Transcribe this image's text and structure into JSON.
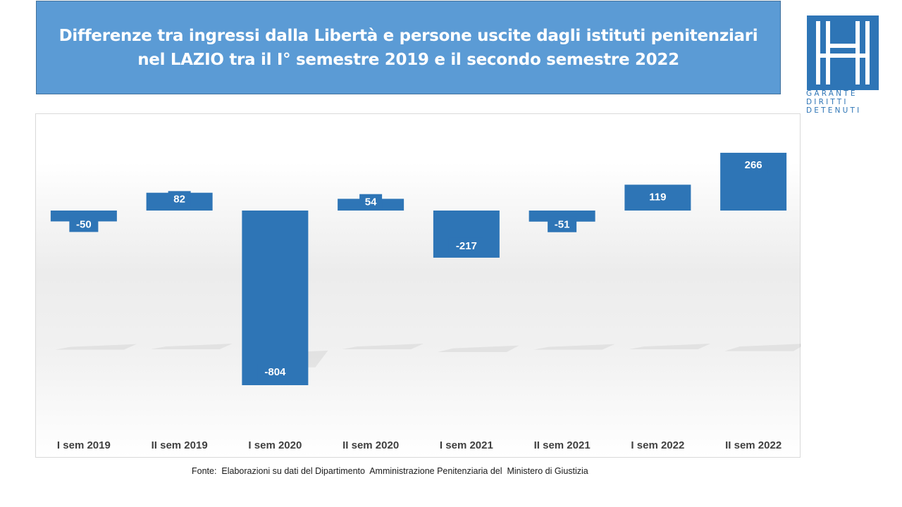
{
  "title": {
    "line1": "Differenze tra ingressi dalla Libertà e persone uscite dagli istituti penitenziari",
    "line2": "nel LAZIO tra il I° semestre 2019 e il secondo semestre 2022"
  },
  "logo": {
    "text_lines": [
      "GARANTE",
      "DIRITTI",
      "DETENUTI"
    ],
    "color": "#2e75b6"
  },
  "source": "Fonte:  Elaborazioni su dati del Dipartimento  Amministrazione Penitenziaria del  Ministero di Giustizia",
  "colors": {
    "bar": "#2e75b6",
    "title_bg": "#5b9bd5"
  },
  "chart_data": {
    "type": "bar",
    "title": "Differenze tra ingressi dalla Libertà e persone uscite dagli istituti penitenziari nel LAZIO tra il I° semestre 2019 e il secondo semestre 2022",
    "categories": [
      "I sem 2019",
      "II sem 2019",
      "I sem 2020",
      "II sem 2020",
      "I sem 2021",
      "II sem 2021",
      "I sem 2022",
      "II sem 2022"
    ],
    "values": [
      -50,
      82,
      -804,
      54,
      -217,
      -51,
      119,
      266
    ],
    "xlabel": "",
    "ylabel": "",
    "ylim": [
      -804,
      266
    ],
    "grid": false,
    "legend": "none",
    "data_labels": true
  }
}
